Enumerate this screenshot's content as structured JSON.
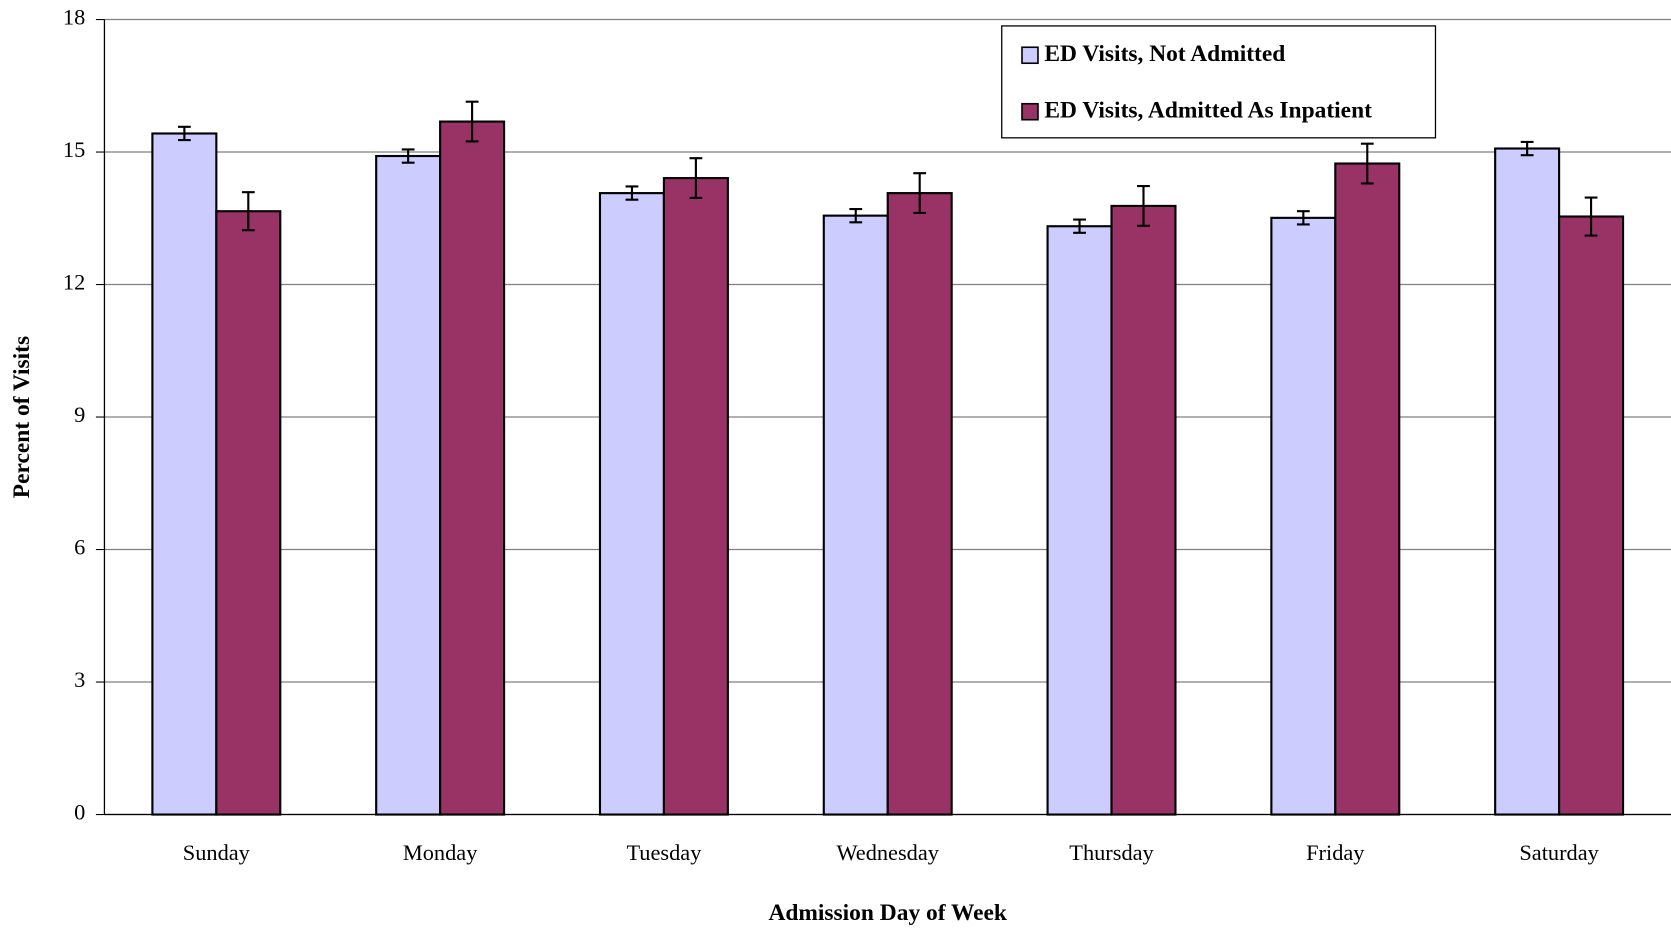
{
  "chart_data": {
    "type": "bar",
    "x_label": "Admission Day of Week",
    "y_label": "Percent of Visits",
    "categories": [
      "Sunday",
      "Monday",
      "Tuesday",
      "Wednesday",
      "Thursday",
      "Friday",
      "Saturday"
    ],
    "series": [
      {
        "name": "ED Visits, Not Admitted",
        "color": "#ccccff",
        "values": [
          15.42,
          14.91,
          14.07,
          13.56,
          13.32,
          13.51,
          15.08
        ],
        "errors": [
          0.15,
          0.15,
          0.15,
          0.15,
          0.15,
          0.15,
          0.15
        ]
      },
      {
        "name": "ED Visits, Admitted As Inpatient",
        "color": "#993366",
        "values": [
          13.66,
          15.69,
          14.41,
          14.07,
          13.78,
          14.74,
          13.54
        ],
        "errors": [
          0.43,
          0.45,
          0.45,
          0.45,
          0.45,
          0.45,
          0.43
        ]
      }
    ],
    "ylim": [
      0,
      18
    ],
    "yticks": [
      0,
      3,
      6,
      9,
      12,
      15,
      18
    ],
    "grid": true,
    "legend": "top-right"
  }
}
